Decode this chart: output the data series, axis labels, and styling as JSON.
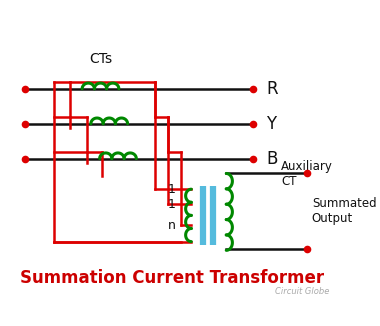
{
  "bg_color": "#ffffff",
  "title": "Summation Current Transformer",
  "title_color": "#cc0000",
  "title_fontsize": 12,
  "watermark": "Circuit Globe",
  "red": "#dd0000",
  "green": "#008800",
  "black": "#111111",
  "blue": "#55bbdd",
  "label_R": "R",
  "label_Y": "Y",
  "label_B": "B",
  "label_Aux": "Auxiliary\nCT",
  "label_1a": "1",
  "label_1b": "1",
  "label_n": "n",
  "label_out": "Summated\nOutput",
  "label_CTs": "CTs"
}
